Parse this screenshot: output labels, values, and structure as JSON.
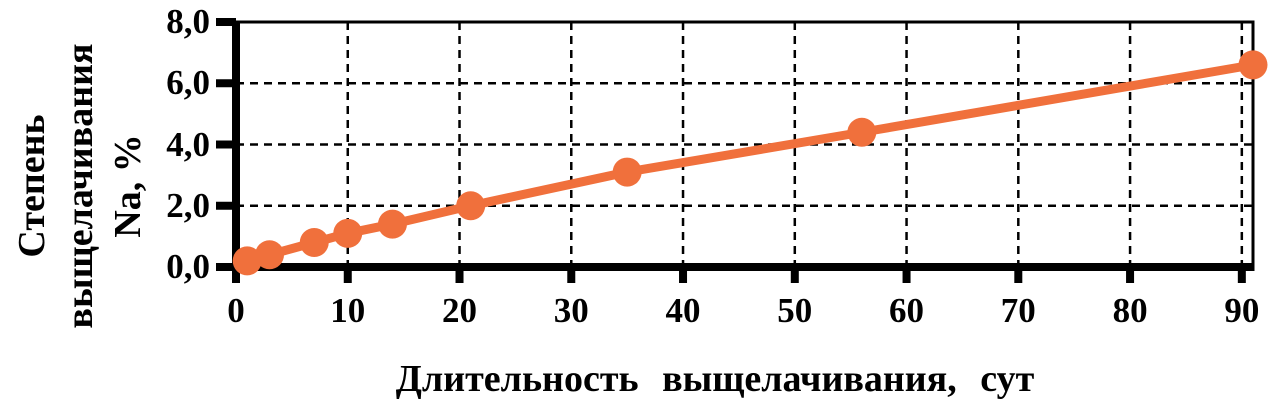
{
  "chart_data": {
    "type": "line",
    "title": "",
    "xlabel": "Длительность выщелачивания, сут",
    "ylabel": "Степень выщелачивания Na, %",
    "ylabel_lines": [
      "Степень",
      "выщелачивания",
      "Na, %"
    ],
    "series": [
      {
        "name": "Степень выщелачивания Na",
        "x": [
          1,
          3,
          7,
          10,
          14,
          21,
          35,
          56,
          91
        ],
        "y": [
          0.2,
          0.4,
          0.8,
          1.1,
          1.4,
          2.0,
          3.1,
          4.4,
          6.6
        ],
        "marker": "circle",
        "color": "#F0703C"
      }
    ],
    "x_ticks": [
      0,
      10,
      20,
      30,
      40,
      50,
      60,
      70,
      80,
      90
    ],
    "x_tick_labels": [
      "0",
      "10",
      "20",
      "30",
      "40",
      "50",
      "60",
      "70",
      "80",
      "90"
    ],
    "y_tick_values": [
      0,
      2,
      4,
      6,
      8
    ],
    "y_tick_labels": [
      "0,0",
      "2,0",
      "4,0",
      "6,0",
      "8,0"
    ],
    "xlim": [
      0,
      91
    ],
    "ylim": [
      0,
      8
    ],
    "grid": "dashed",
    "legend": "none",
    "colors": {
      "series": "#F0703C",
      "axis": "#000000",
      "gridline": "#000000",
      "background": "#FFFFFF"
    }
  }
}
